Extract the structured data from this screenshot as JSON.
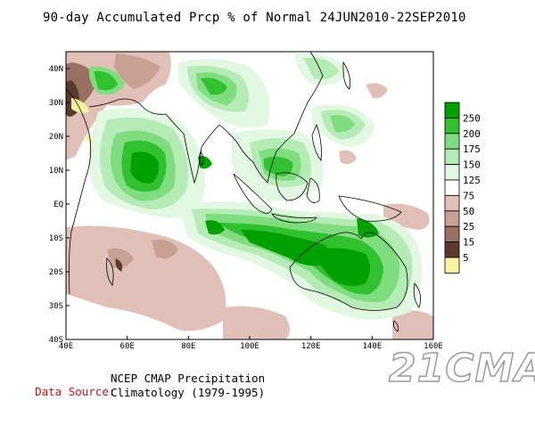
{
  "title": "90-day Accumulated Prcp % of Normal 24JUN2010-22SEP2010",
  "map": {
    "lon_ticks": [
      {
        "value": 40,
        "label": "40E"
      },
      {
        "value": 60,
        "label": "60E"
      },
      {
        "value": 80,
        "label": "80E"
      },
      {
        "value": 100,
        "label": "100E"
      },
      {
        "value": 120,
        "label": "120E"
      },
      {
        "value": 140,
        "label": "140E"
      },
      {
        "value": 160,
        "label": "160E"
      }
    ],
    "lat_ticks": [
      {
        "value": 40,
        "label": "40N"
      },
      {
        "value": 30,
        "label": "30N"
      },
      {
        "value": 20,
        "label": "20N"
      },
      {
        "value": 10,
        "label": "10N"
      },
      {
        "value": 0,
        "label": "EQ"
      },
      {
        "value": -10,
        "label": "10S"
      },
      {
        "value": -20,
        "label": "20S"
      },
      {
        "value": -30,
        "label": "30S"
      },
      {
        "value": -40,
        "label": "40S"
      }
    ],
    "lon_range": [
      40,
      160
    ],
    "lat_range": [
      -40,
      45
    ]
  },
  "legend": [
    {
      "label": "250",
      "color": "#00a000"
    },
    {
      "label": "200",
      "color": "#30c030"
    },
    {
      "label": "175",
      "color": "#7fdc7f"
    },
    {
      "label": "150",
      "color": "#b5ecb5"
    },
    {
      "label": "125",
      "color": "#e3f8e3"
    },
    {
      "label": "75",
      "color": "#ffffff"
    },
    {
      "label": "50",
      "color": "#e0c0b8"
    },
    {
      "label": "25",
      "color": "#c8a094"
    },
    {
      "label": "15",
      "color": "#9a7062"
    },
    {
      "label": "5",
      "color": "#5a3a2c"
    },
    {
      "label": "",
      "color": "#fff2a0"
    }
  ],
  "source": {
    "label": "Data Source:",
    "line1": "NCEP CMAP Precipitation",
    "line2": "Climatology (1979-1995)"
  },
  "watermark": "21CMA"
}
